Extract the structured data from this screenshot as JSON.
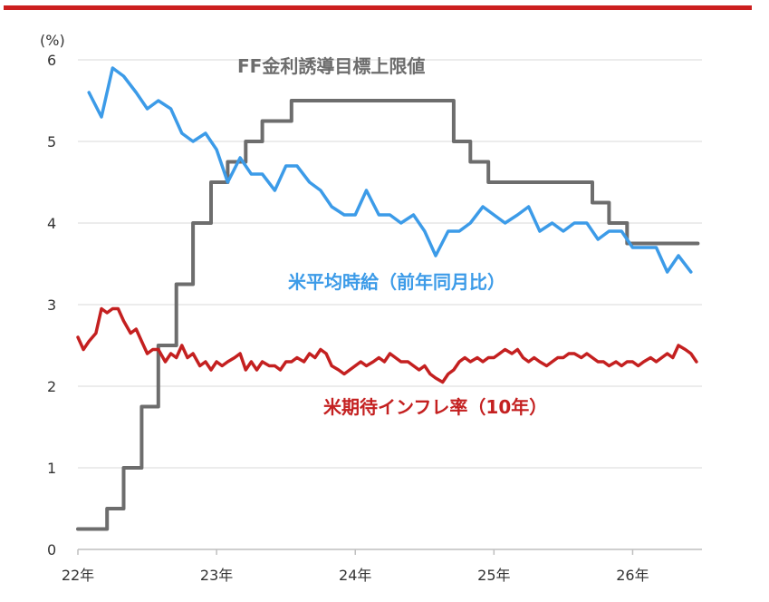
{
  "header": {
    "accent_color": "#cc1f1f"
  },
  "chart_data": {
    "type": "line",
    "y_unit_label": "(%)",
    "ylim": [
      0,
      6
    ],
    "y_ticks": [
      "0",
      "1",
      "2",
      "3",
      "4",
      "5",
      "6"
    ],
    "xlim": [
      2022.0,
      2026.5
    ],
    "x_ticks": [
      {
        "x": 2022,
        "label": "22年"
      },
      {
        "x": 2023,
        "label": "23年"
      },
      {
        "x": 2024,
        "label": "24年"
      },
      {
        "x": 2025,
        "label": "25年"
      },
      {
        "x": 2026,
        "label": "26年"
      }
    ],
    "grid": true,
    "series": [
      {
        "name": "FF金利誘導目標上限値",
        "color": "#6d6d6d",
        "style": "step",
        "points": [
          [
            2022.0,
            0.25
          ],
          [
            2022.21,
            0.5
          ],
          [
            2022.33,
            1.0
          ],
          [
            2022.46,
            1.75
          ],
          [
            2022.58,
            2.5
          ],
          [
            2022.71,
            3.25
          ],
          [
            2022.83,
            4.0
          ],
          [
            2022.96,
            4.5
          ],
          [
            2023.08,
            4.75
          ],
          [
            2023.21,
            5.0
          ],
          [
            2023.33,
            5.25
          ],
          [
            2023.54,
            5.5
          ],
          [
            2024.71,
            5.0
          ],
          [
            2024.83,
            4.75
          ],
          [
            2024.96,
            4.5
          ],
          [
            2025.71,
            4.25
          ],
          [
            2025.83,
            4.0
          ],
          [
            2025.96,
            3.75
          ],
          [
            2026.47,
            3.75
          ]
        ]
      },
      {
        "name": "米平均時給（前年同月比）",
        "color": "#3c9be8",
        "style": "line",
        "points": [
          [
            2022.08,
            5.6
          ],
          [
            2022.17,
            5.3
          ],
          [
            2022.25,
            5.9
          ],
          [
            2022.33,
            5.8
          ],
          [
            2022.42,
            5.6
          ],
          [
            2022.5,
            5.4
          ],
          [
            2022.58,
            5.5
          ],
          [
            2022.67,
            5.4
          ],
          [
            2022.75,
            5.1
          ],
          [
            2022.83,
            5.0
          ],
          [
            2022.92,
            5.1
          ],
          [
            2023.0,
            4.9
          ],
          [
            2023.08,
            4.5
          ],
          [
            2023.17,
            4.8
          ],
          [
            2023.25,
            4.6
          ],
          [
            2023.33,
            4.6
          ],
          [
            2023.42,
            4.4
          ],
          [
            2023.5,
            4.7
          ],
          [
            2023.58,
            4.7
          ],
          [
            2023.67,
            4.5
          ],
          [
            2023.75,
            4.4
          ],
          [
            2023.83,
            4.2
          ],
          [
            2023.92,
            4.1
          ],
          [
            2024.0,
            4.1
          ],
          [
            2024.08,
            4.4
          ],
          [
            2024.17,
            4.1
          ],
          [
            2024.25,
            4.1
          ],
          [
            2024.33,
            4.0
          ],
          [
            2024.42,
            4.1
          ],
          [
            2024.5,
            3.9
          ],
          [
            2024.58,
            3.6
          ],
          [
            2024.67,
            3.9
          ],
          [
            2024.75,
            3.9
          ],
          [
            2024.83,
            4.0
          ],
          [
            2024.92,
            4.2
          ],
          [
            2025.0,
            4.1
          ],
          [
            2025.08,
            4.0
          ],
          [
            2025.17,
            4.1
          ],
          [
            2025.25,
            4.2
          ],
          [
            2025.33,
            3.9
          ],
          [
            2025.42,
            4.0
          ],
          [
            2025.5,
            3.9
          ],
          [
            2025.58,
            4.0
          ],
          [
            2025.67,
            4.0
          ],
          [
            2025.75,
            3.8
          ],
          [
            2025.83,
            3.9
          ],
          [
            2025.92,
            3.9
          ],
          [
            2026.0,
            3.7
          ],
          [
            2026.08,
            3.7
          ],
          [
            2026.17,
            3.7
          ],
          [
            2026.25,
            3.4
          ],
          [
            2026.33,
            3.6
          ],
          [
            2026.42,
            3.4
          ]
        ]
      },
      {
        "name": "米期待インフレ率（10年）",
        "color": "#c42020",
        "style": "line",
        "points": [
          [
            2022.0,
            2.6
          ],
          [
            2022.04,
            2.45
          ],
          [
            2022.08,
            2.55
          ],
          [
            2022.13,
            2.65
          ],
          [
            2022.17,
            2.95
          ],
          [
            2022.21,
            2.9
          ],
          [
            2022.25,
            2.95
          ],
          [
            2022.29,
            2.95
          ],
          [
            2022.33,
            2.8
          ],
          [
            2022.38,
            2.65
          ],
          [
            2022.42,
            2.7
          ],
          [
            2022.46,
            2.55
          ],
          [
            2022.5,
            2.4
          ],
          [
            2022.54,
            2.45
          ],
          [
            2022.58,
            2.45
          ],
          [
            2022.63,
            2.3
          ],
          [
            2022.67,
            2.4
          ],
          [
            2022.71,
            2.35
          ],
          [
            2022.75,
            2.5
          ],
          [
            2022.79,
            2.35
          ],
          [
            2022.83,
            2.4
          ],
          [
            2022.88,
            2.25
          ],
          [
            2022.92,
            2.3
          ],
          [
            2022.96,
            2.2
          ],
          [
            2023.0,
            2.3
          ],
          [
            2023.04,
            2.25
          ],
          [
            2023.08,
            2.3
          ],
          [
            2023.13,
            2.35
          ],
          [
            2023.17,
            2.4
          ],
          [
            2023.21,
            2.2
          ],
          [
            2023.25,
            2.3
          ],
          [
            2023.29,
            2.2
          ],
          [
            2023.33,
            2.3
          ],
          [
            2023.38,
            2.25
          ],
          [
            2023.42,
            2.25
          ],
          [
            2023.46,
            2.2
          ],
          [
            2023.5,
            2.3
          ],
          [
            2023.54,
            2.3
          ],
          [
            2023.58,
            2.35
          ],
          [
            2023.63,
            2.3
          ],
          [
            2023.67,
            2.4
          ],
          [
            2023.71,
            2.35
          ],
          [
            2023.75,
            2.45
          ],
          [
            2023.79,
            2.4
          ],
          [
            2023.83,
            2.25
          ],
          [
            2023.88,
            2.2
          ],
          [
            2023.92,
            2.15
          ],
          [
            2023.96,
            2.2
          ],
          [
            2024.0,
            2.25
          ],
          [
            2024.04,
            2.3
          ],
          [
            2024.08,
            2.25
          ],
          [
            2024.13,
            2.3
          ],
          [
            2024.17,
            2.35
          ],
          [
            2024.21,
            2.3
          ],
          [
            2024.25,
            2.4
          ],
          [
            2024.29,
            2.35
          ],
          [
            2024.33,
            2.3
          ],
          [
            2024.38,
            2.3
          ],
          [
            2024.42,
            2.25
          ],
          [
            2024.46,
            2.2
          ],
          [
            2024.5,
            2.25
          ],
          [
            2024.54,
            2.15
          ],
          [
            2024.58,
            2.1
          ],
          [
            2024.63,
            2.05
          ],
          [
            2024.67,
            2.15
          ],
          [
            2024.71,
            2.2
          ],
          [
            2024.75,
            2.3
          ],
          [
            2024.79,
            2.35
          ],
          [
            2024.83,
            2.3
          ],
          [
            2024.88,
            2.35
          ],
          [
            2024.92,
            2.3
          ],
          [
            2024.96,
            2.35
          ],
          [
            2025.0,
            2.35
          ],
          [
            2025.04,
            2.4
          ],
          [
            2025.08,
            2.45
          ],
          [
            2025.13,
            2.4
          ],
          [
            2025.17,
            2.45
          ],
          [
            2025.21,
            2.35
          ],
          [
            2025.25,
            2.3
          ],
          [
            2025.29,
            2.35
          ],
          [
            2025.33,
            2.3
          ],
          [
            2025.38,
            2.25
          ],
          [
            2025.42,
            2.3
          ],
          [
            2025.46,
            2.35
          ],
          [
            2025.5,
            2.35
          ],
          [
            2025.54,
            2.4
          ],
          [
            2025.58,
            2.4
          ],
          [
            2025.63,
            2.35
          ],
          [
            2025.67,
            2.4
          ],
          [
            2025.71,
            2.35
          ],
          [
            2025.75,
            2.3
          ],
          [
            2025.79,
            2.3
          ],
          [
            2025.83,
            2.25
          ],
          [
            2025.88,
            2.3
          ],
          [
            2025.92,
            2.25
          ],
          [
            2025.96,
            2.3
          ],
          [
            2026.0,
            2.3
          ],
          [
            2026.04,
            2.25
          ],
          [
            2026.08,
            2.3
          ],
          [
            2026.13,
            2.35
          ],
          [
            2026.17,
            2.3
          ],
          [
            2026.21,
            2.35
          ],
          [
            2026.25,
            2.4
          ],
          [
            2026.29,
            2.35
          ],
          [
            2026.33,
            2.5
          ],
          [
            2026.38,
            2.45
          ],
          [
            2026.42,
            2.4
          ],
          [
            2026.46,
            2.3
          ]
        ]
      }
    ]
  }
}
